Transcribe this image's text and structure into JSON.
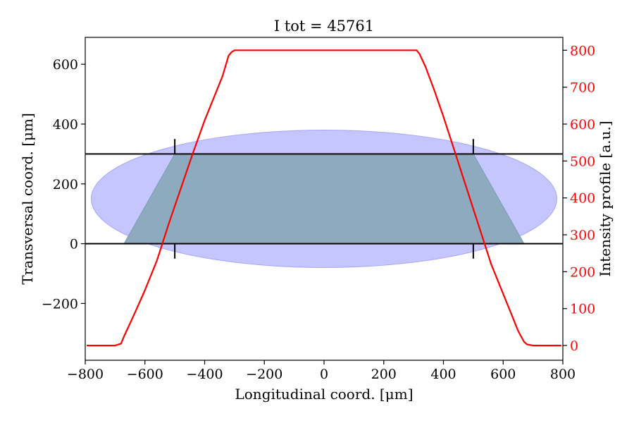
{
  "chart_data": {
    "type": "line",
    "title": "I tot = 45761",
    "xlabel": "Longitudinal coord. [μm]",
    "ylabel": "Transversal coord. [μm]",
    "y2label": "Intensity profile [a.u.]",
    "xlim": [
      -800,
      800
    ],
    "ylim": [
      -390,
      690
    ],
    "y2lim": [
      -40,
      835
    ],
    "xticks": [
      -800,
      -600,
      -400,
      -200,
      0,
      200,
      400,
      600,
      800
    ],
    "xtick_labels": [
      "−800",
      "−600",
      "−400",
      "−200",
      "0",
      "200",
      "400",
      "600",
      "800"
    ],
    "yticks": [
      -200,
      0,
      200,
      400,
      600
    ],
    "ytick_labels": [
      "−200",
      "0",
      "200",
      "400",
      "600"
    ],
    "y2ticks": [
      0,
      100,
      200,
      300,
      400,
      500,
      600,
      700,
      800
    ],
    "y2tick_labels": [
      "0",
      "100",
      "200",
      "300",
      "400",
      "500",
      "600",
      "700",
      "800"
    ],
    "colors": {
      "intensity_line": "#ff0000",
      "right_axis_text": "#ff0000",
      "beam_ellipse_fill": "#b3b3ff",
      "beam_ellipse_stroke": "#8080ff",
      "sample_overlap_fill": "#8eaabf",
      "boundary_line": "#000000"
    },
    "boundary_lines": [
      {
        "y": 300
      },
      {
        "y": 0
      }
    ],
    "boundary_ticks": [
      {
        "x": -500,
        "y_from": 300,
        "y_to": 350
      },
      {
        "x": 500,
        "y_from": 300,
        "y_to": 350
      },
      {
        "x": -500,
        "y_from": 0,
        "y_to": -50
      },
      {
        "x": 500,
        "y_from": 0,
        "y_to": -50
      }
    ],
    "beam_ellipse": {
      "cx": 0,
      "cy": 150,
      "rx": 780,
      "ry": 230
    },
    "overlap_polygon": [
      {
        "x": -500,
        "y": 300
      },
      {
        "x": 500,
        "y": 300
      },
      {
        "x": 670,
        "y": 0
      },
      {
        "x": -670,
        "y": 0
      }
    ],
    "series": [
      {
        "axis": "right",
        "x": [
          -795,
          -700,
          -680,
          -670,
          -650,
          -630,
          -600,
          -560,
          -520,
          -480,
          -440,
          -400,
          -370,
          -340,
          -320,
          -310,
          -300,
          300,
          310,
          320,
          340,
          370,
          400,
          440,
          480,
          520,
          560,
          600,
          630,
          650,
          670,
          680,
          700,
          795
        ],
        "values": [
          0,
          0,
          5,
          25,
          60,
          95,
          150,
          230,
          330,
          425,
          520,
          610,
          670,
          730,
          785,
          795,
          800,
          800,
          800,
          790,
          755,
          690,
          620,
          520,
          420,
          320,
          220,
          140,
          80,
          40,
          10,
          3,
          0,
          0
        ]
      }
    ]
  }
}
